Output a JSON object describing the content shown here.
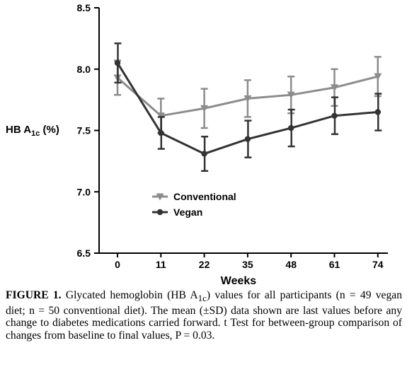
{
  "chart_data": {
    "type": "line",
    "x": [
      0,
      11,
      22,
      35,
      48,
      61,
      74
    ],
    "xticks": [
      "0",
      "11",
      "22",
      "35",
      "48",
      "61",
      "74"
    ],
    "xlabel": "Weeks",
    "ylabel_main": "HB A",
    "ylabel_sub": "1c",
    "ylabel_suffix": " (%)",
    "ylim": [
      6.5,
      8.5
    ],
    "yticks": [
      "6.5",
      "7.0",
      "7.5",
      "8.0",
      "8.5"
    ],
    "ytick_values": [
      6.5,
      7.0,
      7.5,
      8.0,
      8.5
    ],
    "legend_position": "lower-left",
    "series": [
      {
        "name": "Conventional",
        "marker": "triangle-down",
        "color": "#8c8c8c",
        "values": [
          7.93,
          7.62,
          7.68,
          7.76,
          7.79,
          7.85,
          7.94
        ],
        "sd": [
          0.14,
          0.14,
          0.16,
          0.15,
          0.15,
          0.15,
          0.16
        ]
      },
      {
        "name": "Vegan",
        "marker": "circle",
        "color": "#333333",
        "values": [
          8.05,
          7.48,
          7.31,
          7.43,
          7.52,
          7.62,
          7.65
        ],
        "sd": [
          0.16,
          0.13,
          0.14,
          0.15,
          0.15,
          0.15,
          0.15
        ]
      }
    ]
  },
  "caption": {
    "label": "FIGURE 1.",
    "text": " Glycated hemoglobin (HB A",
    "sub": "1c",
    "text2": ") values for all participants (n = 49 vegan diet; n = 50 conventional diet). The mean (±SD) data shown are last values before any change to diabetes medications carried forward. t Test for between-group comparison of changes from baseline to final values, P = 0.03."
  }
}
